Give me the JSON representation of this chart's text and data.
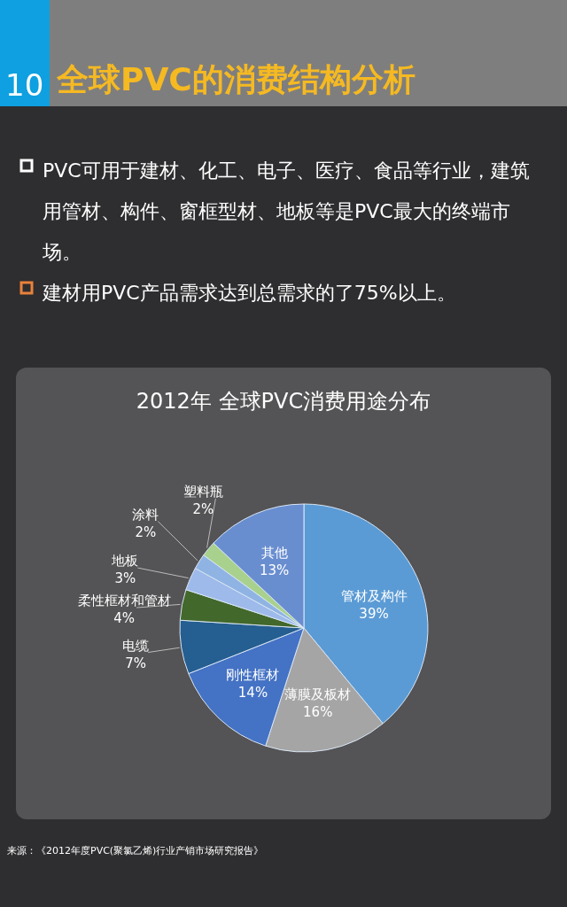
{
  "chart_data": {
    "type": "pie",
    "title": "2012年 全球PVC消费用途分布",
    "categories": [
      "管材及构件",
      "薄膜及板材",
      "刚性框材",
      "电缆",
      "柔性框材和管材",
      "地板",
      "涂料",
      "塑料瓶",
      "其他"
    ],
    "values": [
      39,
      16,
      14,
      7,
      4,
      3,
      2,
      2,
      13
    ],
    "value_labels": [
      "39%",
      "16%",
      "14%",
      "7%",
      "4%",
      "3%",
      "2%",
      "2%",
      "13%"
    ],
    "colors": [
      "#5b9bd5",
      "#a5a5a5",
      "#4472c4",
      "#255e91",
      "#43682b",
      "#9dbaea",
      "#8fb4e3",
      "#a9d18e",
      "#698ed0"
    ],
    "annotations": [
      "10",
      "全球PVC的消费结构分析",
      "PVC可用于建材、化工、电子、医疗、食品等行业，建筑用管材、构件、窗框型材、地板等是PVC最大的终端市场。",
      "建材用PVC产品需求达到总需求的了75%以上。",
      "来源：《2012年度PVC(聚氯乙烯)行业产销市场研究报告》"
    ]
  }
}
